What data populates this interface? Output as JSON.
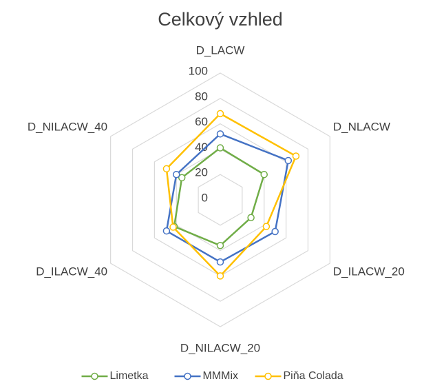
{
  "chart_data": {
    "type": "radar",
    "title": "Celkový vzhled",
    "categories": [
      "D_LACW",
      "D_NLACW",
      "D_ILACW_20",
      "D_NILACW_20",
      "D_ILACW_40",
      "D_NILACW_40"
    ],
    "ylim": [
      0,
      100
    ],
    "yticks": [
      0,
      20,
      40,
      60,
      80,
      100
    ],
    "grid": true,
    "legend": "bottom",
    "series": [
      {
        "name": "Limetka",
        "color": "#70ad47",
        "values": [
          41,
          40,
          28,
          36,
          42,
          35
        ]
      },
      {
        "name": "MMMix",
        "color": "#4472c4",
        "values": [
          52,
          62,
          50,
          49,
          49,
          40
        ]
      },
      {
        "name": "Piňa Colada",
        "color": "#ffc000",
        "values": [
          68,
          69,
          42,
          60,
          43,
          49
        ]
      }
    ]
  }
}
